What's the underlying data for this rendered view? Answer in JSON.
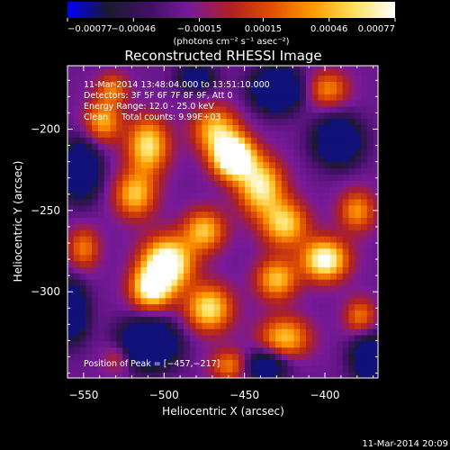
{
  "chart_data": {
    "type": "heatmap",
    "title": "Reconstructed RHESSI Image",
    "xlabel": "Heliocentric X (arcsec)",
    "ylabel": "Heliocentric Y (arcsec)",
    "xlim": [
      -560,
      -367
    ],
    "ylim": [
      -353,
      -161
    ],
    "x_ticks": [
      -550,
      -500,
      -450,
      -400
    ],
    "x_tick_labels": [
      "−550",
      "−500",
      "−450",
      "−400"
    ],
    "y_ticks": [
      -200,
      -250,
      -300
    ],
    "y_tick_labels": [
      "−200",
      "−250",
      "−300"
    ],
    "colorbar": {
      "min": -0.00077,
      "max": 0.00077,
      "ticks": [
        -0.00077,
        -0.00046,
        -0.00015,
        0.00015,
        0.00046,
        0.00077
      ],
      "tick_labels": [
        "−0.00077",
        "−0.00046",
        "−0.00015",
        "0.00015",
        "0.00046",
        "0.00077"
      ],
      "units_label": "(photons cm⁻² s⁻¹ asec⁻²)",
      "colors": [
        "#0000ff",
        "#1a1a2e",
        "#401066",
        "#7a1a9a",
        "#b02020",
        "#e05000",
        "#ff9a00",
        "#ffe060",
        "#ffffff"
      ]
    },
    "annotations": {
      "time_range": "11-Mar-2014 13:48:04.000 to 13:51:10.000",
      "detectors": "Detectors: 3F 5F 6F 7F 8F 9F, Att 0",
      "energy": "Energy Range: 12.0 - 25.0 keV",
      "clean": "Clean     Total counts: 9.99E+03",
      "peak": "Position of Peak = [−457,−217]"
    },
    "peak": {
      "x": -457,
      "y": -217
    },
    "blobs": [
      {
        "x": -457,
        "y": -217,
        "sx": 9,
        "sy": 9,
        "a": 1.0
      },
      {
        "x": -468,
        "y": -200,
        "sx": 10,
        "sy": 10,
        "a": 0.55
      },
      {
        "x": -510,
        "y": -210,
        "sx": 9,
        "sy": 12,
        "a": 0.65
      },
      {
        "x": -538,
        "y": -195,
        "sx": 8,
        "sy": 9,
        "a": 0.5
      },
      {
        "x": -518,
        "y": -240,
        "sx": 9,
        "sy": 10,
        "a": 0.55
      },
      {
        "x": -498,
        "y": -282,
        "sx": 11,
        "sy": 11,
        "a": 0.88
      },
      {
        "x": -508,
        "y": -298,
        "sx": 9,
        "sy": 9,
        "a": 0.7
      },
      {
        "x": -475,
        "y": -262,
        "sx": 9,
        "sy": 9,
        "a": 0.55
      },
      {
        "x": -472,
        "y": -310,
        "sx": 10,
        "sy": 10,
        "a": 0.65
      },
      {
        "x": -440,
        "y": -235,
        "sx": 10,
        "sy": 12,
        "a": 0.68
      },
      {
        "x": -425,
        "y": -258,
        "sx": 10,
        "sy": 10,
        "a": 0.6
      },
      {
        "x": -400,
        "y": -280,
        "sx": 10,
        "sy": 9,
        "a": 0.78
      },
      {
        "x": -430,
        "y": -292,
        "sx": 9,
        "sy": 9,
        "a": 0.55
      },
      {
        "x": -425,
        "y": -328,
        "sx": 11,
        "sy": 9,
        "a": 0.55
      },
      {
        "x": -380,
        "y": -250,
        "sx": 8,
        "sy": 9,
        "a": 0.45
      },
      {
        "x": -378,
        "y": -315,
        "sx": 7,
        "sy": 8,
        "a": 0.4
      },
      {
        "x": -458,
        "y": -345,
        "sx": 9,
        "sy": 7,
        "a": 0.45
      },
      {
        "x": -550,
        "y": -273,
        "sx": 7,
        "sy": 9,
        "a": 0.4
      },
      {
        "x": -528,
        "y": -340,
        "sx": 7,
        "sy": 7,
        "a": 0.3
      },
      {
        "x": -398,
        "y": -175,
        "sx": 9,
        "sy": 8,
        "a": 0.42
      },
      {
        "x": -532,
        "y": -175,
        "sx": 7,
        "sy": 7,
        "a": 0.38
      }
    ],
    "dips": [
      {
        "x": -430,
        "y": -175,
        "sx": 10,
        "sy": 9,
        "a": 0.85
      },
      {
        "x": -510,
        "y": -332,
        "sx": 12,
        "sy": 10,
        "a": 0.85
      },
      {
        "x": -392,
        "y": -207,
        "sx": 10,
        "sy": 10,
        "a": 0.7
      },
      {
        "x": -552,
        "y": -225,
        "sx": 8,
        "sy": 12,
        "a": 0.7
      },
      {
        "x": -558,
        "y": -312,
        "sx": 7,
        "sy": 12,
        "a": 0.7
      },
      {
        "x": -438,
        "y": -345,
        "sx": 10,
        "sy": 7,
        "a": 0.55
      },
      {
        "x": -372,
        "y": -340,
        "sx": 8,
        "sy": 10,
        "a": 0.65
      },
      {
        "x": -480,
        "y": -168,
        "sx": 8,
        "sy": 6,
        "a": 0.45
      }
    ]
  },
  "footer": {
    "timestamp": "11-Mar-2014 20:09"
  }
}
